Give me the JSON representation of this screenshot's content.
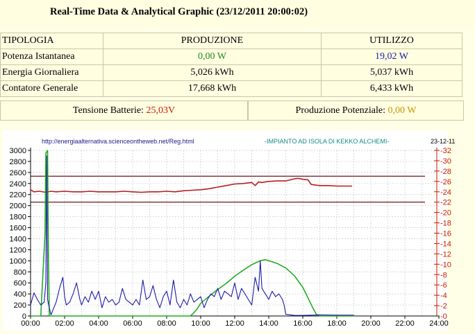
{
  "title": "Real-Time Data & Analytical Graphic (23/12/2011 20:00:02)",
  "table": {
    "headers": [
      "TIPOLOGIA",
      "PRODUZIONE",
      "UTILIZZO"
    ],
    "rows": [
      {
        "label": "Potenza Istantanea",
        "prod": "0,00 W",
        "util": "19,02 W"
      },
      {
        "label": "Energia Giornaliera",
        "prod": "5,026 kWh",
        "util": "5,037 kWh"
      },
      {
        "label": "Contatore Generale",
        "prod": "17,668 kWh",
        "util": "6,433 kWh"
      }
    ]
  },
  "battery": {
    "voltage_label": "Tensione Batterie: ",
    "voltage_value": "25,03V",
    "potential_label": "Produzione Potenziale: ",
    "potential_value": "0,00 W"
  },
  "colors": {
    "production_green": "#1a8c1a",
    "usage_blue": "#1a1aa8",
    "voltage_red": "#c81c00",
    "potential_gold": "#c89600"
  },
  "chart_data": {
    "type": "line",
    "header_left": "http://energiaalternativa.scienceontheweb.net/Reg.html",
    "header_center": "-IMPIANTO AD ISOLA DI KEKKO ALCHEMI-",
    "header_right": "23-12-11",
    "x_ticks": [
      "00:00",
      "02:00",
      "04:00",
      "06:00",
      "08:00",
      "10:00",
      "12:00",
      "14:00",
      "16:00",
      "18:00",
      "20:00",
      "22:00",
      "24:00"
    ],
    "y_left_ticks": [
      "0",
      "200",
      "400",
      "600",
      "800",
      "1000",
      "1200",
      "1400",
      "1600",
      "1800",
      "2000",
      "2200",
      "2400",
      "2600",
      "2800",
      "3000"
    ],
    "y_right_ticks": [
      "0",
      "2",
      "4",
      "6",
      "8",
      "10",
      "12",
      "14",
      "16",
      "18",
      "20",
      "22",
      "24",
      "26",
      "28",
      "30",
      "32"
    ],
    "x_range_hours": [
      0,
      24
    ],
    "y_left_range": [
      0,
      3000
    ],
    "y_right_range": [
      0,
      32
    ],
    "grid": true,
    "reference_lines_right_axis": [
      22,
      27
    ],
    "series": [
      {
        "axis": "right",
        "color": "#b41e1e",
        "x": [
          0.0,
          0.2,
          0.5,
          0.9,
          1.2,
          1.5,
          2.0,
          2.5,
          3.0,
          3.5,
          4.0,
          4.5,
          5.0,
          5.5,
          6.0,
          6.5,
          7.0,
          7.5,
          8.0,
          8.5,
          9.0,
          9.5,
          10.0,
          10.5,
          11.0,
          11.5,
          12.0,
          12.5,
          13.0,
          13.2,
          13.4,
          13.6,
          14.0,
          14.5,
          15.0,
          15.5,
          15.7,
          15.9,
          16.0,
          16.3,
          16.5,
          17.0,
          17.5,
          18.0,
          18.5,
          18.9
        ],
        "values": [
          24.4,
          24.0,
          24.1,
          23.9,
          24.1,
          24.0,
          24.1,
          24.0,
          24.0,
          24.1,
          24.0,
          24.0,
          24.0,
          24.1,
          24.0,
          23.9,
          24.0,
          24.0,
          24.1,
          24.0,
          24.2,
          24.3,
          24.4,
          24.6,
          24.9,
          25.2,
          25.5,
          25.6,
          25.8,
          25.2,
          25.9,
          25.8,
          26.0,
          26.1,
          26.1,
          26.5,
          26.6,
          26.5,
          26.4,
          26.3,
          25.4,
          25.2,
          25.2,
          25.1,
          25.1,
          25.1
        ]
      },
      {
        "axis": "left",
        "color": "#22aa22",
        "x": [
          0.0,
          0.6,
          0.85,
          0.9,
          1.0,
          1.05,
          1.1,
          9.4,
          9.6,
          9.8,
          10.0,
          10.5,
          11.0,
          11.5,
          12.0,
          12.5,
          13.0,
          13.5,
          13.8,
          14.0,
          14.5,
          15.0,
          15.5,
          16.0,
          16.3,
          16.6,
          16.8,
          17.0,
          19.0
        ],
        "values": [
          0,
          0,
          1500,
          2950,
          3000,
          1200,
          0,
          0,
          60,
          130,
          230,
          360,
          480,
          590,
          720,
          830,
          930,
          1000,
          1020,
          1000,
          950,
          870,
          730,
          520,
          330,
          140,
          30,
          0,
          0
        ]
      },
      {
        "axis": "left",
        "color": "#1a1aa8",
        "x": [
          0.0,
          0.2,
          0.4,
          0.6,
          0.8,
          0.9,
          0.95,
          1.0,
          1.1,
          1.2,
          1.5,
          1.7,
          1.9,
          2.0,
          2.1,
          2.3,
          2.5,
          2.7,
          2.9,
          3.0,
          3.2,
          3.4,
          3.6,
          3.8,
          4.0,
          4.2,
          4.4,
          4.6,
          4.8,
          5.0,
          5.2,
          5.4,
          5.6,
          5.8,
          6.0,
          6.2,
          6.4,
          6.6,
          6.8,
          7.0,
          7.2,
          7.4,
          7.6,
          7.8,
          8.0,
          8.2,
          8.4,
          8.6,
          8.8,
          9.0,
          9.2,
          9.4,
          9.6,
          9.8,
          10.0,
          10.2,
          10.4,
          10.6,
          10.8,
          11.0,
          11.2,
          11.4,
          11.6,
          11.8,
          12.0,
          12.2,
          12.4,
          12.6,
          12.8,
          13.0,
          13.2,
          13.4,
          13.5,
          13.6,
          13.8,
          14.0,
          14.2,
          14.4,
          14.6,
          14.8,
          14.9,
          15.0,
          15.5,
          16.0,
          17.0,
          18.0,
          19.0
        ],
        "values": [
          200,
          420,
          300,
          200,
          250,
          600,
          2900,
          300,
          150,
          20,
          250,
          500,
          700,
          350,
          200,
          250,
          400,
          600,
          300,
          200,
          350,
          250,
          450,
          300,
          450,
          150,
          350,
          250,
          300,
          200,
          250,
          500,
          300,
          250,
          200,
          300,
          200,
          650,
          300,
          350,
          550,
          300,
          150,
          350,
          450,
          200,
          650,
          250,
          150,
          300,
          200,
          400,
          250,
          300,
          350,
          150,
          300,
          400,
          350,
          500,
          300,
          450,
          400,
          350,
          600,
          300,
          500,
          400,
          300,
          200,
          700,
          450,
          1000,
          500,
          400,
          300,
          450,
          350,
          400,
          300,
          200,
          30,
          10,
          10,
          20,
          15,
          15
        ]
      }
    ]
  }
}
